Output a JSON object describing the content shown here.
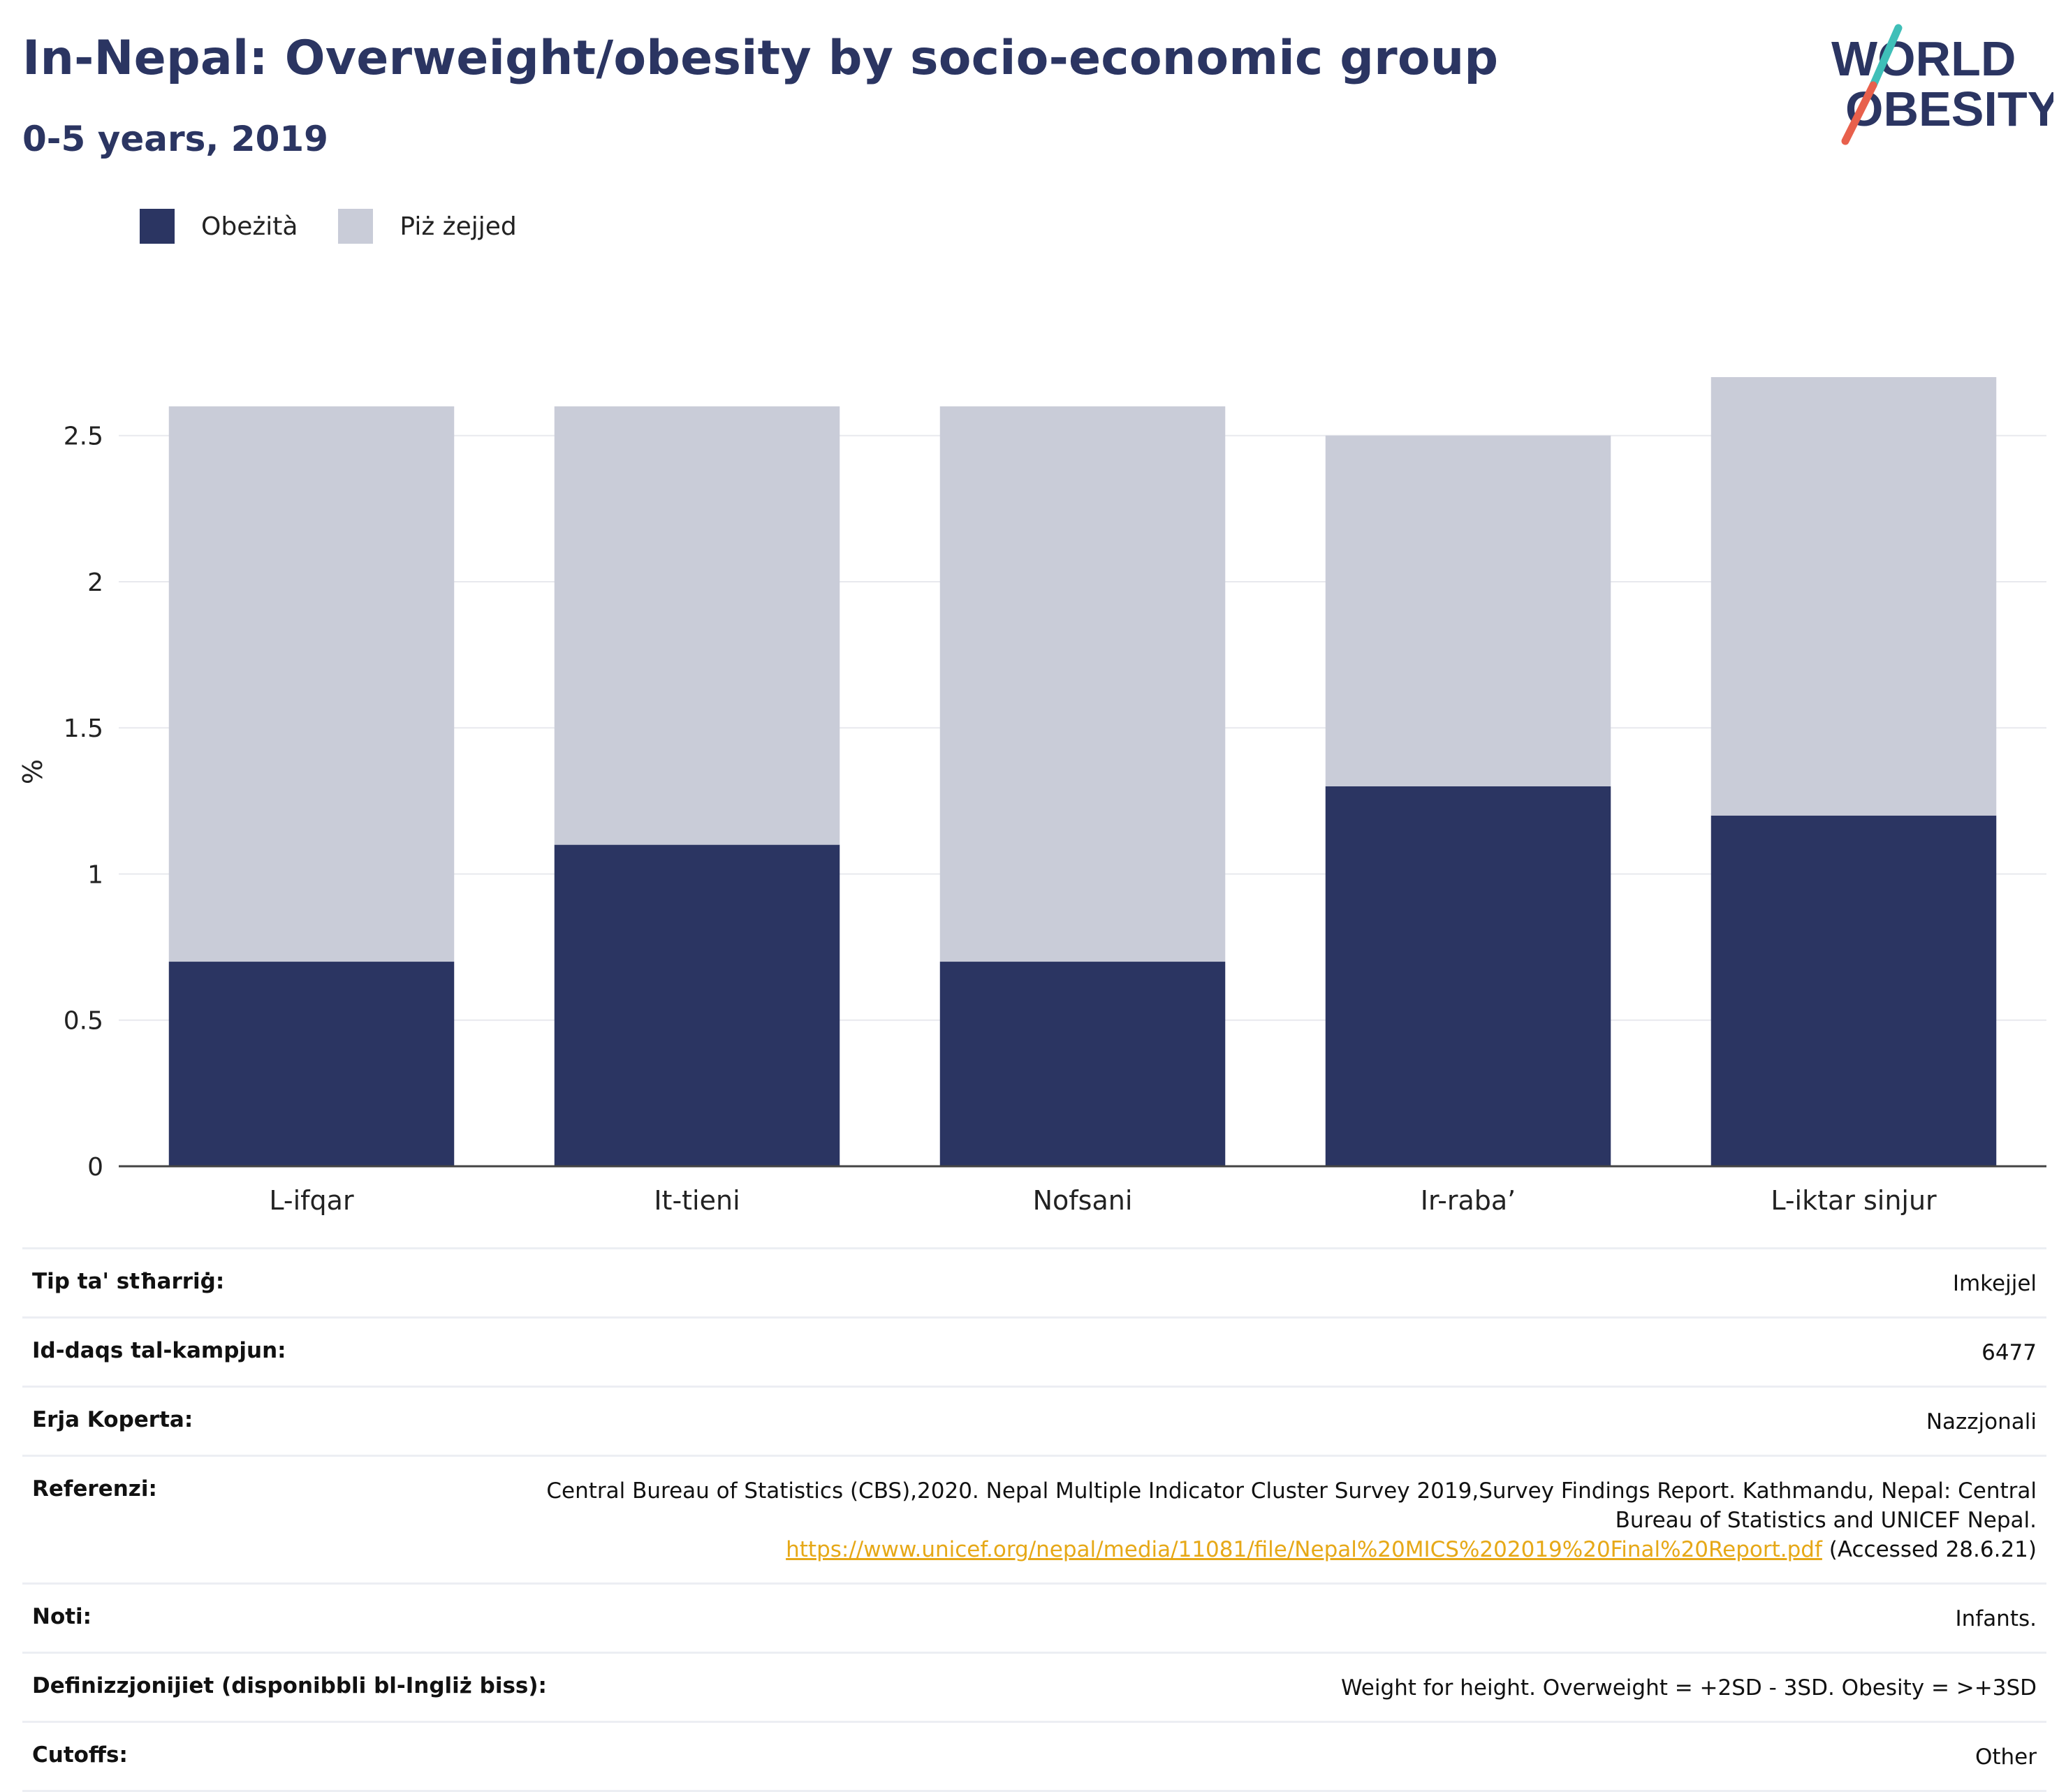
{
  "title": "In-Nepal: Overweight/obesity by socio-economic group",
  "subtitle": "0-5 years, 2019",
  "logo": {
    "line1": "WORLD",
    "line2": "OBESITY"
  },
  "colors": {
    "obesity": "#2b3562",
    "overweight": "#c9ccd8",
    "accent_red": "#e8604c",
    "accent_teal": "#3fbfb8",
    "link": "#e6a817"
  },
  "legend": [
    {
      "label": "Obeżità",
      "color": "#2b3562"
    },
    {
      "label": "Piż żejjed",
      "color": "#c9ccd8"
    }
  ],
  "chart_data": {
    "type": "bar",
    "stacked": true,
    "categories": [
      "L-ifqar",
      "It-tieni",
      "Nofsani",
      "Ir-raba’",
      "L-iktar sinjur"
    ],
    "series": [
      {
        "name": "Obeżità",
        "color": "#2b3562",
        "values": [
          0.7,
          1.1,
          0.7,
          1.3,
          1.2
        ]
      },
      {
        "name": "Piż żejjed",
        "color": "#c9ccd8",
        "values": [
          1.9,
          1.5,
          1.9,
          1.2,
          1.5
        ]
      }
    ],
    "ylabel": "%",
    "ylim": [
      0,
      2.7
    ],
    "yticks": [
      0,
      0.5,
      1,
      1.5,
      2,
      2.5
    ],
    "ytick_labels": [
      "0",
      "0.5",
      "1",
      "1.5",
      "2",
      "2.5"
    ],
    "grid": true,
    "legend_position": "top-left"
  },
  "info": [
    {
      "key": "Tip ta' stħarriġ:",
      "value": "Imkejjel"
    },
    {
      "key": "Id-daqs tal-kampjun:",
      "value": "6477"
    },
    {
      "key": "Erja Koperta:",
      "value": "Nazzjonali"
    },
    {
      "key": "Referenzi:",
      "value": "Central Bureau of Statistics (CBS),2020. Nepal Multiple Indicator Cluster Survey 2019,Survey Findings Report. Kathmandu, Nepal: Central Bureau of Statistics and UNICEF Nepal.",
      "link": "https://www.unicef.org/nepal/media/11081/file/Nepal%20MICS%202019%20Final%20Report.pdf",
      "suffix": " (Accessed 28.6.21)"
    },
    {
      "key": "Noti:",
      "value": "Infants."
    },
    {
      "key": "Definizzjonijiet (disponibbli bl-Ingliż biss):",
      "value": "Weight for height. Overweight = +2SD - 3SD. Obesity = >+3SD"
    },
    {
      "key": "Cutoffs:",
      "value": "Other"
    }
  ]
}
